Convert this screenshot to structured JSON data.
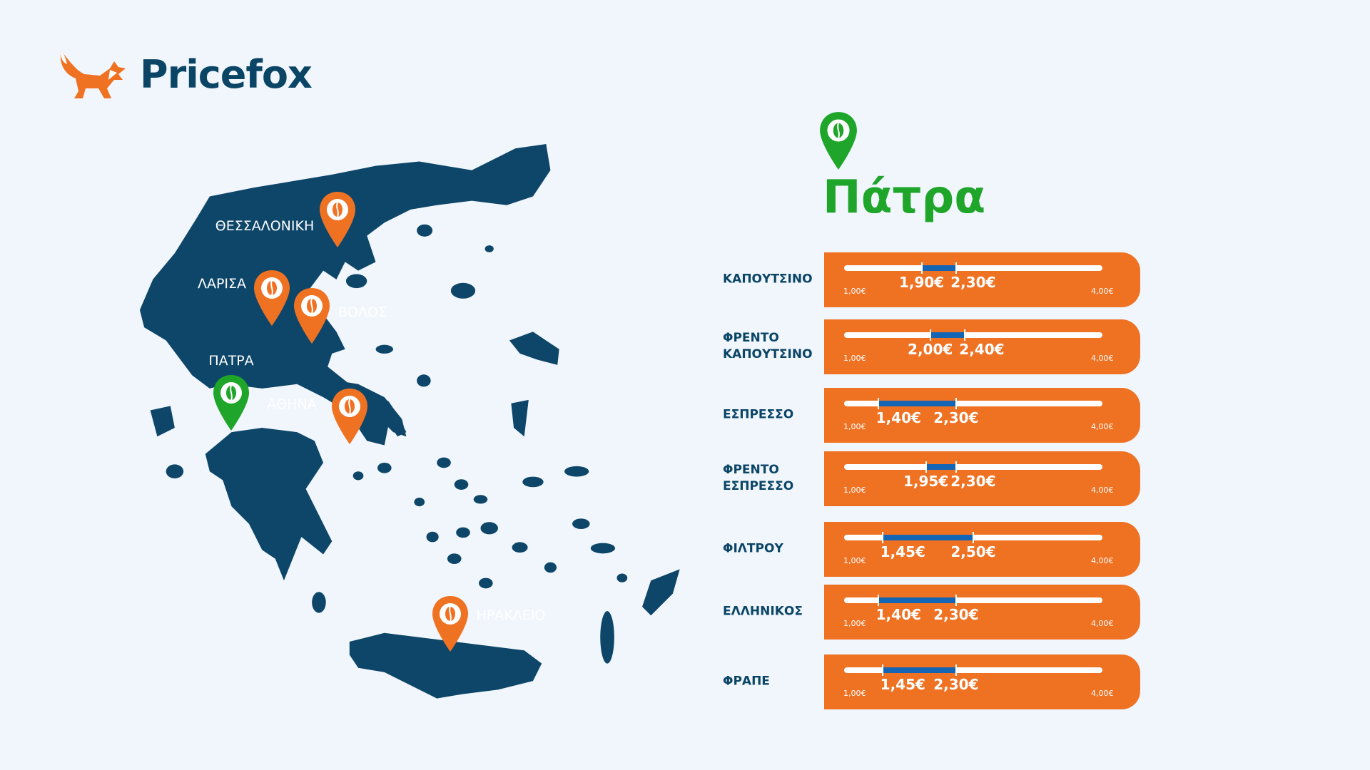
{
  "brand": {
    "name": "Pricefox",
    "logo_icon": "fox-icon",
    "color": "#0b4566",
    "accent": "#ef7223"
  },
  "map": {
    "land_color": "#0d4668",
    "cities": [
      {
        "name": "ΘΕΣΣΑΛΟΝΙΚΗ",
        "pin": "orange",
        "icon": "coffee-bean-icon"
      },
      {
        "name": "ΛΑΡΙΣΑ",
        "pin": "orange",
        "icon": "coffee-bean-icon"
      },
      {
        "name": "ΒΟΛΟΣ",
        "pin": "orange",
        "icon": "coffee-bean-icon"
      },
      {
        "name": "ΠΑΤΡΑ",
        "pin": "green",
        "icon": "coffee-bean-icon"
      },
      {
        "name": "ΑΘΗΝΑ",
        "pin": "orange",
        "icon": "coffee-bean-icon"
      },
      {
        "name": "ΗΡΑΚΛΕΙΟ",
        "pin": "orange",
        "icon": "coffee-bean-icon"
      }
    ]
  },
  "selected_city": {
    "title": "Πάτρα",
    "color": "#1ea52a"
  },
  "scale": {
    "min": 1.0,
    "max": 4.0,
    "min_label": "1,00€",
    "max_label": "4,00€"
  },
  "prices": [
    {
      "label": "ΚΑΠΟΥΤΣΙΝΟ",
      "low": 1.9,
      "high": 2.3,
      "low_label": "1,90€",
      "high_label": "2,30€"
    },
    {
      "label": "ΦΡΕΝΤΟ ΚΑΠΟΥΤΣΙΝΟ",
      "low": 2.0,
      "high": 2.4,
      "low_label": "2,00€",
      "high_label": "2,40€"
    },
    {
      "label": "ΕΣΠΡΕΣΣΟ",
      "low": 1.4,
      "high": 2.3,
      "low_label": "1,40€",
      "high_label": "2,30€"
    },
    {
      "label": "ΦΡΕΝΤΟ ΕΣΠΡΕΣΣΟ",
      "low": 1.95,
      "high": 2.3,
      "low_label": "1,95€",
      "high_label": "2,30€"
    },
    {
      "label": "ΦΙΛΤΡΟΥ",
      "low": 1.45,
      "high": 2.5,
      "low_label": "1,45€",
      "high_label": "2,50€"
    },
    {
      "label": "ΕΛΛΗΝΙΚΟΣ",
      "low": 1.4,
      "high": 2.3,
      "low_label": "1,40€",
      "high_label": "2,30€"
    },
    {
      "label": "ΦΡΑΠΕ",
      "low": 1.45,
      "high": 2.3,
      "low_label": "1,45€",
      "high_label": "2,30€"
    }
  ]
}
